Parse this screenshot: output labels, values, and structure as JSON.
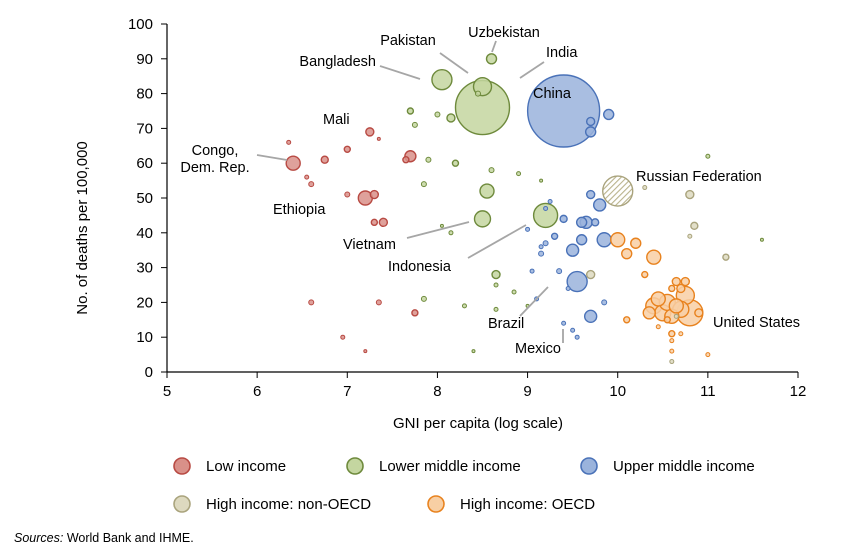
{
  "chart_data": {
    "type": "scatter",
    "xlabel": "GNI per capita (log scale)",
    "ylabel": "No. of deaths per 100,000",
    "xlim": [
      5,
      12
    ],
    "ylim": [
      0,
      100
    ],
    "xticks": [
      "5",
      "6",
      "7",
      "8",
      "9",
      "10",
      "11",
      "12"
    ],
    "yticks": [
      "0",
      "10",
      "20",
      "30",
      "40",
      "50",
      "60",
      "70",
      "80",
      "90",
      "100"
    ],
    "legend_position": "bottom",
    "colors": {
      "low": {
        "fill": "#d99089",
        "stroke": "#b84a43"
      },
      "lower_middle": {
        "fill": "#c4d6a0",
        "stroke": "#6e8a3c"
      },
      "upper_middle": {
        "fill": "#9ab3dc",
        "stroke": "#4a72b8"
      },
      "high_non_oecd": {
        "fill": "#ddd9bf",
        "stroke": "#a9a37c"
      },
      "high_oecd": {
        "fill": "#f8cfa4",
        "stroke": "#e8821e"
      }
    },
    "series": [
      {
        "name": "Low income",
        "key": "low",
        "points": [
          {
            "x": 6.4,
            "y": 60,
            "size": 7
          },
          {
            "x": 7.2,
            "y": 50,
            "size": 7
          },
          {
            "x": 6.35,
            "y": 66,
            "size": 2
          },
          {
            "x": 6.55,
            "y": 56,
            "size": 2
          },
          {
            "x": 6.6,
            "y": 54,
            "size": 2.5
          },
          {
            "x": 6.75,
            "y": 61,
            "size": 3.5
          },
          {
            "x": 7.0,
            "y": 64,
            "size": 3
          },
          {
            "x": 7.25,
            "y": 69,
            "size": 4
          },
          {
            "x": 7.35,
            "y": 67,
            "size": 1.5
          },
          {
            "x": 7.3,
            "y": 51,
            "size": 4
          },
          {
            "x": 7.0,
            "y": 51,
            "size": 2.5
          },
          {
            "x": 7.3,
            "y": 43,
            "size": 3
          },
          {
            "x": 7.4,
            "y": 43,
            "size": 4
          },
          {
            "x": 7.65,
            "y": 61,
            "size": 3
          },
          {
            "x": 7.7,
            "y": 62,
            "size": 5.5
          },
          {
            "x": 7.35,
            "y": 20,
            "size": 2.5
          },
          {
            "x": 6.6,
            "y": 20,
            "size": 2.5
          },
          {
            "x": 6.95,
            "y": 10,
            "size": 2
          },
          {
            "x": 7.2,
            "y": 6,
            "size": 1.5
          },
          {
            "x": 7.75,
            "y": 17,
            "size": 3
          }
        ]
      },
      {
        "name": "Lower middle income",
        "key": "lower_middle",
        "points": [
          {
            "x": 8.5,
            "y": 76,
            "size": 27
          },
          {
            "x": 8.05,
            "y": 84,
            "size": 10
          },
          {
            "x": 8.5,
            "y": 82,
            "size": 9
          },
          {
            "x": 8.6,
            "y": 90,
            "size": 5
          },
          {
            "x": 9.2,
            "y": 45,
            "size": 12
          },
          {
            "x": 8.55,
            "y": 52,
            "size": 7
          },
          {
            "x": 8.5,
            "y": 44,
            "size": 8
          },
          {
            "x": 8.65,
            "y": 28,
            "size": 4
          },
          {
            "x": 8.2,
            "y": 60,
            "size": 3
          },
          {
            "x": 7.9,
            "y": 61,
            "size": 2.5
          },
          {
            "x": 8.15,
            "y": 73,
            "size": 4
          },
          {
            "x": 8.0,
            "y": 74,
            "size": 2.5
          },
          {
            "x": 8.45,
            "y": 80,
            "size": 2.5
          },
          {
            "x": 7.7,
            "y": 75,
            "size": 3
          },
          {
            "x": 7.75,
            "y": 71,
            "size": 2.5
          },
          {
            "x": 7.85,
            "y": 54,
            "size": 2.5
          },
          {
            "x": 7.85,
            "y": 21,
            "size": 2.5
          },
          {
            "x": 8.15,
            "y": 40,
            "size": 2
          },
          {
            "x": 8.05,
            "y": 42,
            "size": 1.5
          },
          {
            "x": 8.6,
            "y": 58,
            "size": 2.5
          },
          {
            "x": 8.65,
            "y": 25,
            "size": 2
          },
          {
            "x": 8.3,
            "y": 19,
            "size": 2
          },
          {
            "x": 8.85,
            "y": 23,
            "size": 2
          },
          {
            "x": 8.9,
            "y": 57,
            "size": 2
          },
          {
            "x": 9.15,
            "y": 55,
            "size": 1.5
          },
          {
            "x": 9.0,
            "y": 19,
            "size": 1.5
          },
          {
            "x": 11.0,
            "y": 62,
            "size": 2
          },
          {
            "x": 11.6,
            "y": 38,
            "size": 1.5
          },
          {
            "x": 8.4,
            "y": 6,
            "size": 1.5
          },
          {
            "x": 8.65,
            "y": 18,
            "size": 2
          }
        ]
      },
      {
        "name": "Upper middle income",
        "key": "upper_middle",
        "points": [
          {
            "x": 9.4,
            "y": 75,
            "size": 36
          },
          {
            "x": 9.55,
            "y": 26,
            "size": 10
          },
          {
            "x": 9.7,
            "y": 16,
            "size": 6
          },
          {
            "x": 9.5,
            "y": 35,
            "size": 6
          },
          {
            "x": 9.65,
            "y": 43,
            "size": 6
          },
          {
            "x": 9.85,
            "y": 38,
            "size": 7
          },
          {
            "x": 9.6,
            "y": 38,
            "size": 5
          },
          {
            "x": 9.75,
            "y": 43,
            "size": 3.5
          },
          {
            "x": 9.8,
            "y": 48,
            "size": 6
          },
          {
            "x": 9.7,
            "y": 51,
            "size": 4
          },
          {
            "x": 9.4,
            "y": 44,
            "size": 3.5
          },
          {
            "x": 9.3,
            "y": 39,
            "size": 3
          },
          {
            "x": 9.35,
            "y": 29,
            "size": 2.5
          },
          {
            "x": 9.15,
            "y": 34,
            "size": 2.5
          },
          {
            "x": 9.2,
            "y": 37,
            "size": 2.5
          },
          {
            "x": 9.1,
            "y": 21,
            "size": 2
          },
          {
            "x": 9.5,
            "y": 12,
            "size": 2
          },
          {
            "x": 9.9,
            "y": 74,
            "size": 5
          },
          {
            "x": 9.7,
            "y": 72,
            "size": 4
          },
          {
            "x": 9.7,
            "y": 69,
            "size": 5
          },
          {
            "x": 9.05,
            "y": 29,
            "size": 2
          },
          {
            "x": 9.45,
            "y": 24,
            "size": 2
          },
          {
            "x": 9.85,
            "y": 20,
            "size": 2.5
          },
          {
            "x": 9.0,
            "y": 41,
            "size": 2
          },
          {
            "x": 9.25,
            "y": 49,
            "size": 2
          },
          {
            "x": 9.4,
            "y": 14,
            "size": 2
          },
          {
            "x": 9.2,
            "y": 47,
            "size": 2
          },
          {
            "x": 9.55,
            "y": 10,
            "size": 2
          },
          {
            "x": 9.15,
            "y": 36,
            "size": 2
          },
          {
            "x": 9.6,
            "y": 43,
            "size": 5
          }
        ]
      },
      {
        "name": "High income: non-OECD",
        "key": "high_non_oecd",
        "points": [
          {
            "x": 10.0,
            "y": 52,
            "size": 15,
            "hatched": true
          },
          {
            "x": 10.8,
            "y": 51,
            "size": 4
          },
          {
            "x": 10.85,
            "y": 42,
            "size": 3.5
          },
          {
            "x": 10.3,
            "y": 53,
            "size": 2
          },
          {
            "x": 9.7,
            "y": 28,
            "size": 4
          },
          {
            "x": 10.8,
            "y": 39,
            "size": 2
          },
          {
            "x": 10.6,
            "y": 3,
            "size": 2
          },
          {
            "x": 11.2,
            "y": 33,
            "size": 3
          },
          {
            "x": 10.65,
            "y": 16,
            "size": 2
          }
        ]
      },
      {
        "name": "High income: OECD",
        "key": "high_oecd",
        "points": [
          {
            "x": 10.8,
            "y": 17,
            "size": 13
          },
          {
            "x": 10.75,
            "y": 22,
            "size": 9
          },
          {
            "x": 10.4,
            "y": 19,
            "size": 8
          },
          {
            "x": 10.5,
            "y": 17,
            "size": 8
          },
          {
            "x": 10.55,
            "y": 20,
            "size": 8
          },
          {
            "x": 10.7,
            "y": 18,
            "size": 8
          },
          {
            "x": 10.6,
            "y": 16,
            "size": 7
          },
          {
            "x": 10.45,
            "y": 21,
            "size": 7
          },
          {
            "x": 10.65,
            "y": 19,
            "size": 7
          },
          {
            "x": 10.35,
            "y": 17,
            "size": 6
          },
          {
            "x": 10.4,
            "y": 33,
            "size": 7
          },
          {
            "x": 10.0,
            "y": 38,
            "size": 7
          },
          {
            "x": 10.2,
            "y": 37,
            "size": 5
          },
          {
            "x": 10.1,
            "y": 34,
            "size": 5
          },
          {
            "x": 10.7,
            "y": 24,
            "size": 4
          },
          {
            "x": 10.75,
            "y": 26,
            "size": 4
          },
          {
            "x": 10.65,
            "y": 26,
            "size": 4
          },
          {
            "x": 10.9,
            "y": 17,
            "size": 4
          },
          {
            "x": 10.55,
            "y": 15,
            "size": 3
          },
          {
            "x": 10.1,
            "y": 15,
            "size": 3
          },
          {
            "x": 10.6,
            "y": 11,
            "size": 3
          },
          {
            "x": 10.3,
            "y": 28,
            "size": 3
          },
          {
            "x": 10.6,
            "y": 24,
            "size": 3
          },
          {
            "x": 10.6,
            "y": 9,
            "size": 2
          },
          {
            "x": 11.0,
            "y": 5,
            "size": 2
          },
          {
            "x": 10.45,
            "y": 13,
            "size": 2
          },
          {
            "x": 10.7,
            "y": 11,
            "size": 2
          },
          {
            "x": 10.6,
            "y": 6,
            "size": 2
          }
        ]
      }
    ],
    "annotations": [
      {
        "lines": [
          "Pakistan"
        ],
        "x": 8.5,
        "y": 82
      },
      {
        "lines": [
          "Uzbekistan"
        ],
        "x": 8.6,
        "y": 90
      },
      {
        "lines": [
          "India"
        ],
        "x": 8.5,
        "y": 76
      },
      {
        "lines": [
          "Bangladesh"
        ],
        "x": 8.05,
        "y": 84
      },
      {
        "lines": [
          "China"
        ],
        "x": 9.4,
        "y": 75
      },
      {
        "lines": [
          "Mali"
        ],
        "x": 7.25,
        "y": 69
      },
      {
        "lines": [
          "Congo,",
          "Dem. Rep."
        ],
        "x": 6.4,
        "y": 60
      },
      {
        "lines": [
          "Ethiopia"
        ],
        "x": 7.2,
        "y": 50
      },
      {
        "lines": [
          "Russian Federation"
        ],
        "x": 10.0,
        "y": 52
      },
      {
        "lines": [
          "Vietnam"
        ],
        "x": 8.5,
        "y": 44
      },
      {
        "lines": [
          "Indonesia"
        ],
        "x": 9.2,
        "y": 45
      },
      {
        "lines": [
          "Brazil"
        ],
        "x": 9.55,
        "y": 26
      },
      {
        "lines": [
          "United States"
        ],
        "x": 10.8,
        "y": 17
      },
      {
        "lines": [
          "Mexico"
        ],
        "x": 9.7,
        "y": 16
      }
    ]
  },
  "source": {
    "label": "Sources:",
    "text": " World Bank and IHME."
  }
}
